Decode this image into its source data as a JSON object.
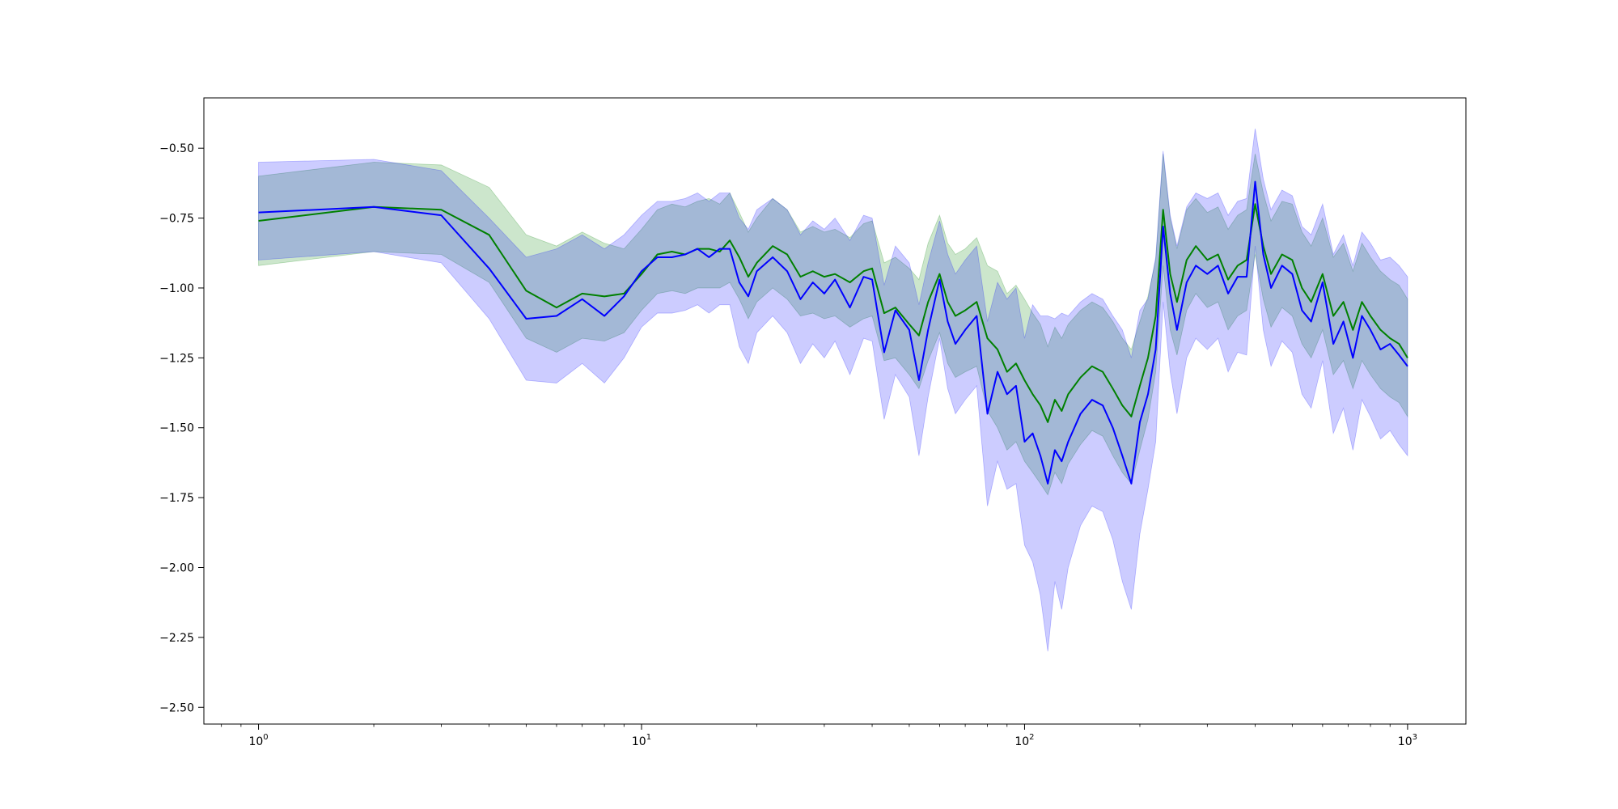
{
  "chart_data": {
    "type": "line",
    "title": "",
    "xlabel": "",
    "ylabel": "",
    "x_scale": "log",
    "xlim": [
      0.72,
      1420
    ],
    "ylim": [
      -2.56,
      -0.32
    ],
    "grid": false,
    "legend": "none",
    "x_ticks": [
      {
        "value": 1,
        "base": "10",
        "exp": "0"
      },
      {
        "value": 10,
        "base": "10",
        "exp": "1"
      },
      {
        "value": 100,
        "base": "10",
        "exp": "2"
      },
      {
        "value": 1000,
        "base": "10",
        "exp": "3"
      }
    ],
    "y_ticks": [
      {
        "value": -0.5,
        "label": "−0.50"
      },
      {
        "value": -0.75,
        "label": "−0.75"
      },
      {
        "value": -1.0,
        "label": "−1.00"
      },
      {
        "value": -1.25,
        "label": "−1.25"
      },
      {
        "value": -1.5,
        "label": "−1.50"
      },
      {
        "value": -1.75,
        "label": "−1.75"
      },
      {
        "value": -2.0,
        "label": "−2.00"
      },
      {
        "value": -2.25,
        "label": "−2.25"
      },
      {
        "value": -2.5,
        "label": "−2.50"
      }
    ],
    "series": [
      {
        "color": "#008000",
        "band_color": "#008000",
        "band_opacity": 0.2,
        "x": [
          1,
          2,
          3,
          4,
          5,
          6,
          7,
          8,
          9,
          10,
          11,
          12,
          13,
          14,
          15,
          16,
          17,
          18,
          19,
          20,
          22,
          24,
          26,
          28,
          30,
          32,
          35,
          38,
          40,
          43,
          46,
          50,
          53,
          56,
          60,
          63,
          66,
          70,
          75,
          80,
          85,
          90,
          95,
          100,
          105,
          110,
          115,
          120,
          125,
          130,
          140,
          150,
          160,
          170,
          180,
          190,
          200,
          210,
          220,
          230,
          240,
          250,
          265,
          280,
          300,
          320,
          340,
          360,
          380,
          400,
          420,
          440,
          470,
          500,
          530,
          560,
          600,
          640,
          680,
          720,
          760,
          800,
          850,
          900,
          950,
          1000
        ],
        "y": [
          -0.76,
          -0.71,
          -0.72,
          -0.81,
          -1.01,
          -1.07,
          -1.02,
          -1.03,
          -1.02,
          -0.95,
          -0.88,
          -0.87,
          -0.88,
          -0.86,
          -0.86,
          -0.87,
          -0.83,
          -0.89,
          -0.96,
          -0.91,
          -0.85,
          -0.88,
          -0.96,
          -0.94,
          -0.96,
          -0.95,
          -0.98,
          -0.94,
          -0.93,
          -1.09,
          -1.07,
          -1.13,
          -1.17,
          -1.05,
          -0.95,
          -1.05,
          -1.1,
          -1.08,
          -1.05,
          -1.18,
          -1.22,
          -1.3,
          -1.27,
          -1.33,
          -1.38,
          -1.42,
          -1.48,
          -1.4,
          -1.44,
          -1.38,
          -1.32,
          -1.28,
          -1.3,
          -1.36,
          -1.42,
          -1.46,
          -1.35,
          -1.25,
          -1.1,
          -0.72,
          -0.95,
          -1.05,
          -0.9,
          -0.85,
          -0.9,
          -0.88,
          -0.97,
          -0.92,
          -0.9,
          -0.7,
          -0.85,
          -0.95,
          -0.88,
          -0.9,
          -1.0,
          -1.05,
          -0.95,
          -1.1,
          -1.05,
          -1.15,
          -1.05,
          -1.1,
          -1.15,
          -1.18,
          -1.2,
          -1.25
        ],
        "lower": [
          -0.92,
          -0.87,
          -0.88,
          -0.98,
          -1.18,
          -1.23,
          -1.18,
          -1.19,
          -1.16,
          -1.08,
          -1.02,
          -1.01,
          -1.02,
          -1.0,
          -1.0,
          -1.0,
          -0.98,
          -1.04,
          -1.11,
          -1.05,
          -1.0,
          -1.04,
          -1.1,
          -1.09,
          -1.11,
          -1.1,
          -1.14,
          -1.11,
          -1.1,
          -1.26,
          -1.25,
          -1.31,
          -1.36,
          -1.26,
          -1.16,
          -1.27,
          -1.32,
          -1.3,
          -1.28,
          -1.44,
          -1.5,
          -1.58,
          -1.55,
          -1.62,
          -1.66,
          -1.7,
          -1.74,
          -1.66,
          -1.7,
          -1.63,
          -1.56,
          -1.51,
          -1.53,
          -1.6,
          -1.66,
          -1.7,
          -1.58,
          -1.47,
          -1.3,
          -0.92,
          -1.15,
          -1.24,
          -1.08,
          -1.02,
          -1.07,
          -1.05,
          -1.15,
          -1.1,
          -1.08,
          -0.88,
          -1.04,
          -1.14,
          -1.07,
          -1.1,
          -1.2,
          -1.25,
          -1.15,
          -1.31,
          -1.26,
          -1.36,
          -1.26,
          -1.31,
          -1.36,
          -1.39,
          -1.41,
          -1.46
        ],
        "upper": [
          -0.6,
          -0.55,
          -0.56,
          -0.64,
          -0.81,
          -0.85,
          -0.8,
          -0.84,
          -0.86,
          -0.79,
          -0.72,
          -0.7,
          -0.71,
          -0.69,
          -0.68,
          -0.7,
          -0.66,
          -0.73,
          -0.8,
          -0.75,
          -0.68,
          -0.72,
          -0.8,
          -0.78,
          -0.8,
          -0.79,
          -0.82,
          -0.77,
          -0.76,
          -0.91,
          -0.89,
          -0.93,
          -0.97,
          -0.84,
          -0.74,
          -0.84,
          -0.88,
          -0.86,
          -0.82,
          -0.92,
          -0.94,
          -1.02,
          -0.99,
          -1.04,
          -1.09,
          -1.13,
          -1.21,
          -1.14,
          -1.18,
          -1.13,
          -1.08,
          -1.05,
          -1.07,
          -1.12,
          -1.18,
          -1.22,
          -1.12,
          -1.03,
          -0.9,
          -0.52,
          -0.75,
          -0.86,
          -0.72,
          -0.68,
          -0.73,
          -0.71,
          -0.79,
          -0.74,
          -0.72,
          -0.52,
          -0.66,
          -0.76,
          -0.69,
          -0.7,
          -0.8,
          -0.85,
          -0.75,
          -0.89,
          -0.84,
          -0.94,
          -0.84,
          -0.89,
          -0.94,
          -0.97,
          -0.99,
          -1.04
        ]
      },
      {
        "color": "#0000ff",
        "band_color": "#0000ff",
        "band_opacity": 0.2,
        "x": [
          1,
          2,
          3,
          4,
          5,
          6,
          7,
          8,
          9,
          10,
          11,
          12,
          13,
          14,
          15,
          16,
          17,
          18,
          19,
          20,
          22,
          24,
          26,
          28,
          30,
          32,
          35,
          38,
          40,
          43,
          46,
          50,
          53,
          56,
          60,
          63,
          66,
          70,
          75,
          80,
          85,
          90,
          95,
          100,
          105,
          110,
          115,
          120,
          125,
          130,
          140,
          150,
          160,
          170,
          180,
          190,
          200,
          210,
          220,
          230,
          240,
          250,
          265,
          280,
          300,
          320,
          340,
          360,
          380,
          400,
          420,
          440,
          470,
          500,
          530,
          560,
          600,
          640,
          680,
          720,
          760,
          800,
          850,
          900,
          950,
          1000
        ],
        "y": [
          -0.73,
          -0.71,
          -0.74,
          -0.93,
          -1.11,
          -1.1,
          -1.04,
          -1.1,
          -1.03,
          -0.94,
          -0.89,
          -0.89,
          -0.88,
          -0.86,
          -0.89,
          -0.86,
          -0.86,
          -0.98,
          -1.03,
          -0.94,
          -0.89,
          -0.94,
          -1.04,
          -0.98,
          -1.02,
          -0.97,
          -1.07,
          -0.96,
          -0.97,
          -1.23,
          -1.08,
          -1.15,
          -1.33,
          -1.15,
          -0.97,
          -1.12,
          -1.2,
          -1.15,
          -1.1,
          -1.45,
          -1.3,
          -1.38,
          -1.35,
          -1.55,
          -1.52,
          -1.6,
          -1.7,
          -1.58,
          -1.62,
          -1.55,
          -1.45,
          -1.4,
          -1.42,
          -1.5,
          -1.6,
          -1.7,
          -1.48,
          -1.38,
          -1.22,
          -0.78,
          -1.02,
          -1.15,
          -0.98,
          -0.92,
          -0.95,
          -0.92,
          -1.02,
          -0.96,
          -0.96,
          -0.62,
          -0.88,
          -1.0,
          -0.92,
          -0.95,
          -1.08,
          -1.12,
          -0.98,
          -1.2,
          -1.12,
          -1.25,
          -1.1,
          -1.15,
          -1.22,
          -1.2,
          -1.24,
          -1.28
        ],
        "lower": [
          -0.9,
          -0.87,
          -0.91,
          -1.11,
          -1.33,
          -1.34,
          -1.27,
          -1.34,
          -1.25,
          -1.14,
          -1.09,
          -1.09,
          -1.08,
          -1.06,
          -1.09,
          -1.06,
          -1.06,
          -1.21,
          -1.27,
          -1.16,
          -1.1,
          -1.16,
          -1.27,
          -1.2,
          -1.25,
          -1.19,
          -1.31,
          -1.18,
          -1.19,
          -1.47,
          -1.31,
          -1.39,
          -1.6,
          -1.39,
          -1.18,
          -1.36,
          -1.45,
          -1.4,
          -1.35,
          -1.78,
          -1.62,
          -1.72,
          -1.7,
          -1.92,
          -1.98,
          -2.1,
          -2.3,
          -2.05,
          -2.15,
          -2.0,
          -1.85,
          -1.78,
          -1.8,
          -1.9,
          -2.05,
          -2.15,
          -1.88,
          -1.72,
          -1.55,
          -1.05,
          -1.3,
          -1.45,
          -1.25,
          -1.18,
          -1.22,
          -1.18,
          -1.3,
          -1.23,
          -1.24,
          -0.85,
          -1.15,
          -1.28,
          -1.19,
          -1.23,
          -1.38,
          -1.43,
          -1.26,
          -1.52,
          -1.43,
          -1.58,
          -1.4,
          -1.46,
          -1.54,
          -1.51,
          -1.56,
          -1.6
        ],
        "upper": [
          -0.55,
          -0.54,
          -0.58,
          -0.75,
          -0.89,
          -0.86,
          -0.81,
          -0.86,
          -0.81,
          -0.74,
          -0.69,
          -0.69,
          -0.68,
          -0.66,
          -0.69,
          -0.66,
          -0.66,
          -0.75,
          -0.79,
          -0.72,
          -0.68,
          -0.72,
          -0.81,
          -0.76,
          -0.79,
          -0.75,
          -0.83,
          -0.74,
          -0.75,
          -0.99,
          -0.85,
          -0.91,
          -1.06,
          -0.91,
          -0.76,
          -0.88,
          -0.95,
          -0.9,
          -0.85,
          -1.12,
          -0.98,
          -1.04,
          -1.0,
          -1.18,
          -1.06,
          -1.1,
          -1.1,
          -1.11,
          -1.09,
          -1.1,
          -1.05,
          -1.02,
          -1.04,
          -1.1,
          -1.15,
          -1.25,
          -1.08,
          -1.04,
          -0.89,
          -0.51,
          -0.74,
          -0.85,
          -0.71,
          -0.66,
          -0.68,
          -0.66,
          -0.74,
          -0.69,
          -0.68,
          -0.43,
          -0.61,
          -0.72,
          -0.65,
          -0.67,
          -0.78,
          -0.81,
          -0.7,
          -0.88,
          -0.81,
          -0.92,
          -0.8,
          -0.84,
          -0.9,
          -0.89,
          -0.92,
          -0.96
        ]
      }
    ]
  }
}
